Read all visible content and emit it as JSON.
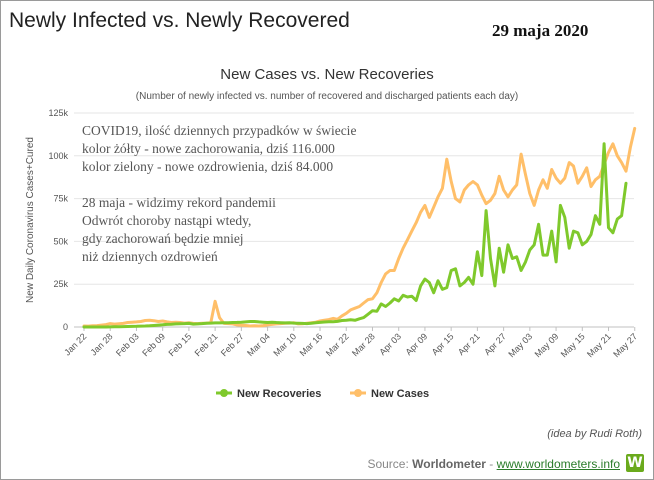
{
  "header": {
    "title": "Newly Infected vs. Newly Recovered",
    "date": "29 maja 2020"
  },
  "annotation": {
    "lines": [
      "COVID19, ilość dziennych przypadków w świecie",
      "kolor żółty - nowe zachorowania, dziś 116.000",
      "kolor zielony - nowe ozdrowienia, dziś 84.000",
      "",
      "28 maja - widzimy rekord pandemii",
      "Odwrót choroby nastąpi wtedy,",
      "gdy zachorowań będzie mniej",
      "niż dziennych ozdrowień"
    ]
  },
  "credit": "(idea by Rudi Roth)",
  "source": {
    "prefix": "Source: ",
    "name": "Worldometer",
    "separator": " - ",
    "link": "www.worldometers.info",
    "logo_letter": "W"
  },
  "colors": {
    "new_cases": "#ffbf69",
    "new_recoveries": "#7fc92c",
    "grid": "#e6e6e6",
    "axis_text": "#555555"
  },
  "chart_data": {
    "type": "line",
    "title": "New Cases vs. New Recoveries",
    "subtitle": "(Number of newly infected vs. number of recovered and discharged patients each day)",
    "ylabel": "New Daily Coronavirus Cases+Cured",
    "xlabel": "",
    "ylim": [
      0,
      125000
    ],
    "y_ticks": [
      0,
      25000,
      50000,
      75000,
      100000,
      125000
    ],
    "y_tick_labels": [
      "0",
      "25k",
      "50k",
      "75k",
      "100k",
      "125k"
    ],
    "x_tick_labels": [
      "Jan 22",
      "Jan 28",
      "Feb 03",
      "Feb 09",
      "Feb 15",
      "Feb 21",
      "Feb 27",
      "Mar 04",
      "Mar 10",
      "Mar 16",
      "Mar 22",
      "Mar 28",
      "Apr 03",
      "Apr 09",
      "Apr 15",
      "Apr 21",
      "Apr 27",
      "May 03",
      "May 09",
      "May 15",
      "May 21",
      "May 27"
    ],
    "grid": true,
    "legend_position": "bottom",
    "x_start": "Jan 22",
    "x_end": "May 28",
    "series": [
      {
        "name": "New Recoveries",
        "color": "#7fc92c",
        "values": [
          0,
          0,
          0,
          0,
          0,
          0,
          50,
          100,
          200,
          250,
          300,
          350,
          400,
          500,
          600,
          700,
          900,
          1100,
          1300,
          1500,
          1600,
          1800,
          1900,
          2000,
          2100,
          1700,
          1800,
          2000,
          2200,
          2300,
          2400,
          2400,
          2500,
          2500,
          2600,
          2700,
          2800,
          3000,
          3200,
          3200,
          3000,
          2800,
          2600,
          2800,
          2600,
          2500,
          2400,
          2500,
          2300,
          2200,
          2100,
          2000,
          2200,
          2500,
          2700,
          2900,
          3100,
          3100,
          3300,
          3800,
          4000,
          4200,
          3900,
          4800,
          5500,
          7500,
          9500,
          9200,
          13500,
          12000,
          14000,
          16500,
          15200,
          18500,
          17500,
          18000,
          15500,
          24000,
          28000,
          26000,
          20000,
          27000,
          22000,
          23000,
          33000,
          34000,
          24000,
          26000,
          29000,
          25000,
          44000,
          30000,
          68000,
          40000,
          24000,
          46000,
          32000,
          48000,
          40000,
          41000,
          33000,
          38000,
          45000,
          48000,
          60000,
          42000,
          42000,
          56000,
          38000,
          71000,
          64000,
          46000,
          56000,
          55000,
          48000,
          50000,
          54000,
          65000,
          60000,
          107000,
          58000,
          55000,
          63000,
          65000,
          84000
        ]
      },
      {
        "name": "New Cases",
        "color": "#ffbf69",
        "values": [
          600,
          500,
          700,
          800,
          1100,
          1400,
          2000,
          1700,
          1900,
          2100,
          2600,
          2800,
          3000,
          3200,
          3800,
          3900,
          3700,
          3200,
          3500,
          3000,
          2600,
          2800,
          2600,
          2300,
          2500,
          2100,
          2000,
          2200,
          2300,
          2500,
          15000,
          5500,
          2100,
          2000,
          1800,
          1200,
          1000,
          900,
          600,
          700,
          600,
          800,
          1200,
          1500,
          1800,
          2000,
          2200,
          2300,
          2500,
          1800,
          1900,
          2200,
          2500,
          2800,
          3500,
          4000,
          4300,
          5000,
          4500,
          6500,
          8000,
          10000,
          11000,
          12000,
          14000,
          16000,
          16500,
          20000,
          26000,
          31000,
          33000,
          33000,
          40000,
          46000,
          51000,
          56000,
          61000,
          67000,
          71000,
          64000,
          70000,
          76000,
          81000,
          98000,
          85000,
          75000,
          73000,
          80000,
          83000,
          85000,
          83000,
          77000,
          72000,
          74000,
          78000,
          88000,
          80000,
          76000,
          80000,
          83000,
          101000,
          89000,
          78000,
          71000,
          80000,
          86000,
          81000,
          92000,
          87000,
          84000,
          87000,
          96000,
          94000,
          84000,
          88000,
          93000,
          82000,
          86000,
          88000,
          95000,
          102000,
          107000,
          100000,
          96000,
          91000,
          105000,
          116000
        ]
      }
    ]
  }
}
